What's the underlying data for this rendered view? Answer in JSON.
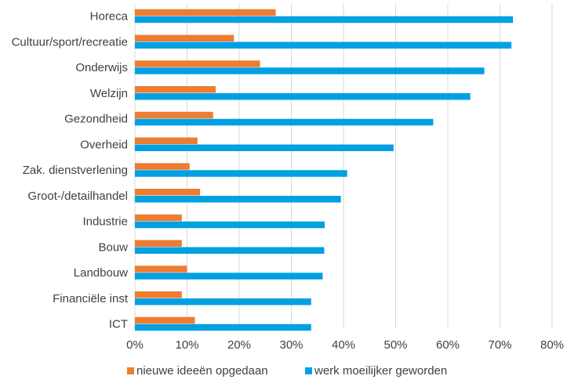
{
  "chart_data": {
    "type": "bar",
    "orientation": "horizontal",
    "categories": [
      "Horeca",
      "Cultuur/sport/recreatie",
      "Onderwijs",
      "Welzijn",
      "Gezondheid",
      "Overheid",
      "Zak. dienstverlening",
      "Groot-/detailhandel",
      "Industrie",
      "Bouw",
      "Landbouw",
      "Financiële inst",
      "ICT"
    ],
    "series": [
      {
        "name": "nieuwe ideeën opgedaan",
        "color": "#ed7d31",
        "values": [
          27,
          19,
          24,
          15.5,
          15,
          12,
          10.5,
          12.5,
          9,
          9,
          10,
          9,
          11.5
        ]
      },
      {
        "name": "werk moeilijker geworden",
        "color": "#00a0e3",
        "values": [
          72.5,
          72.2,
          67,
          64.3,
          57.2,
          49.6,
          40.7,
          39.5,
          36.4,
          36.3,
          36,
          33.8,
          33.8
        ]
      }
    ],
    "x_ticks": [
      "0%",
      "10%",
      "20%",
      "30%",
      "40%",
      "50%",
      "60%",
      "70%",
      "80%"
    ],
    "xlim": [
      0,
      80
    ],
    "grid": "vertical",
    "legend": "bottom",
    "title": "",
    "xlabel": "",
    "ylabel": ""
  }
}
